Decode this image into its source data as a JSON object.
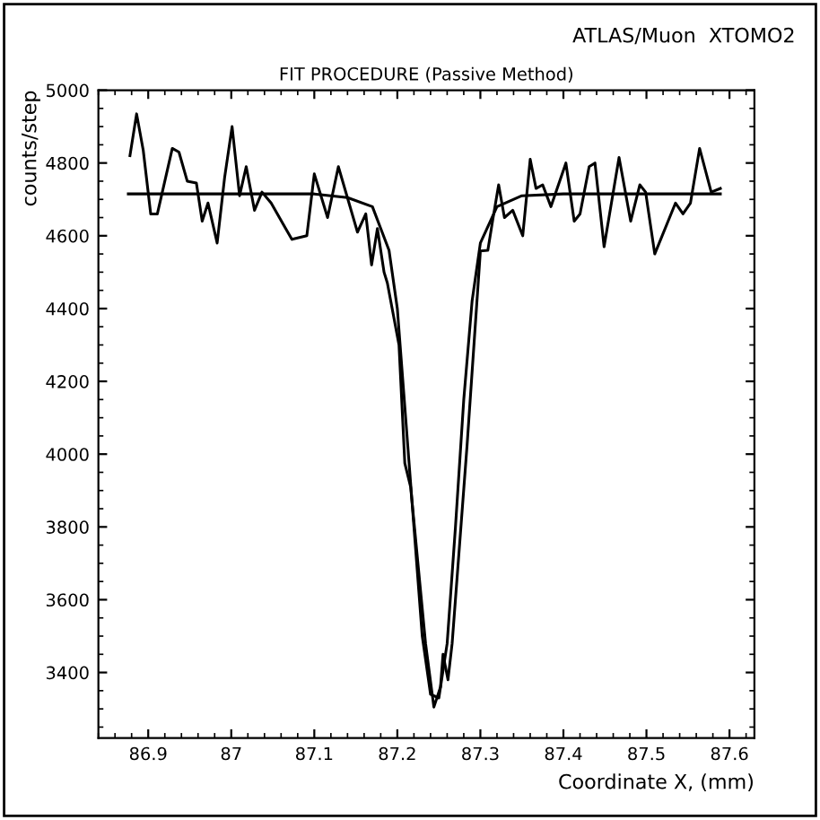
{
  "chart_data": {
    "type": "line",
    "title": "FIT PROCEDURE (Passive Method)",
    "xlabel": "Coordinate X, (mm)",
    "ylabel": "counts/step",
    "annotations": [
      "ATLAS/Muon  XTOMO2"
    ],
    "xlim": [
      86.84,
      87.63
    ],
    "xticks": [
      86.9,
      87,
      87.1,
      87.2,
      87.3,
      87.4,
      87.5,
      87.6
    ],
    "ylim": [
      3220,
      5000
    ],
    "yticks": [
      3400,
      3600,
      3800,
      4000,
      4200,
      4400,
      4600,
      4800,
      5000
    ],
    "grid": false,
    "legend": false,
    "marker": "none",
    "line_style": "solid",
    "series": [
      {
        "color": "#000000",
        "x": [
          86.878,
          86.886,
          86.894,
          86.903,
          86.911,
          86.929,
          86.937,
          86.947,
          86.958,
          86.965,
          86.972,
          86.983,
          86.992,
          87.001,
          87.01,
          87.018,
          87.028,
          87.037,
          87.048,
          87.073,
          87.091,
          87.1,
          87.116,
          87.129,
          87.152,
          87.162,
          87.169,
          87.176,
          87.184,
          87.188,
          87.202,
          87.209,
          87.216,
          87.234,
          87.244,
          87.252,
          87.255,
          87.261,
          87.266,
          87.284,
          87.3,
          87.309,
          87.315,
          87.322,
          87.329,
          87.339,
          87.351,
          87.36,
          87.367,
          87.375,
          87.385,
          87.403,
          87.413,
          87.42,
          87.431,
          87.438,
          87.449,
          87.467,
          87.481,
          87.492,
          87.499,
          87.51,
          87.535,
          87.544,
          87.553,
          87.564,
          87.578,
          87.589
        ],
        "values": [
          4820,
          4935,
          4835,
          4660,
          4660,
          4840,
          4830,
          4750,
          4745,
          4640,
          4690,
          4580,
          4760,
          4900,
          4710,
          4790,
          4670,
          4720,
          4690,
          4590,
          4600,
          4770,
          4650,
          4790,
          4610,
          4660,
          4520,
          4620,
          4500,
          4470,
          4300,
          3975,
          3910,
          3480,
          3305,
          3360,
          3450,
          3380,
          3480,
          4025,
          4558,
          4560,
          4645,
          4740,
          4650,
          4670,
          4600,
          4810,
          4730,
          4740,
          4680,
          4800,
          4640,
          4660,
          4790,
          4800,
          4570,
          4815,
          4640,
          4740,
          4720,
          4550,
          4690,
          4660,
          4690,
          4840,
          4720,
          4730
        ]
      },
      {
        "color": "#000000",
        "x": [
          86.876,
          87.1,
          87.14,
          87.17,
          87.19,
          87.2,
          87.21,
          87.22,
          87.23,
          87.24,
          87.25,
          87.26,
          87.27,
          87.28,
          87.29,
          87.3,
          87.32,
          87.35,
          87.4,
          87.589
        ],
        "values": [
          4715,
          4715,
          4705,
          4680,
          4560,
          4400,
          4100,
          3800,
          3500,
          3340,
          3330,
          3480,
          3800,
          4150,
          4420,
          4580,
          4680,
          4710,
          4715,
          4715
        ]
      }
    ]
  }
}
